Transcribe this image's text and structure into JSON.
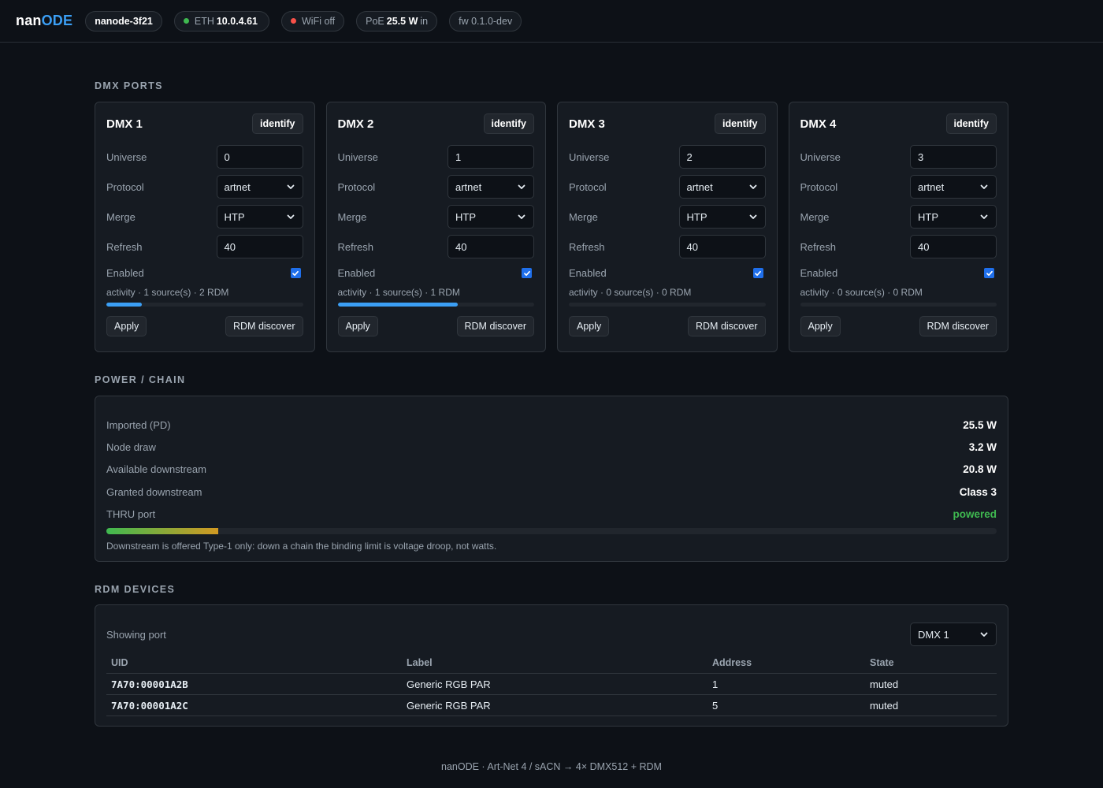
{
  "header": {
    "logo_prefix": "nan",
    "logo_accent": "ODE",
    "hostname": "nanode-3f21",
    "eth": {
      "label": "ETH",
      "value": "10.0.4.61",
      "color": "#3fb950"
    },
    "wifi": {
      "label": "WiFi off",
      "color": "#f85149"
    },
    "poe": {
      "label": "PoE",
      "value": "25.5 W",
      "suffix": "in"
    },
    "firmware": "fw 0.1.0-dev"
  },
  "ports_section": {
    "title": "DMX PORTS",
    "labels": {
      "universe": "Universe",
      "protocol": "Protocol",
      "merge": "Merge",
      "refresh": "Refresh",
      "enabled": "Enabled",
      "identify": "identify",
      "apply": "Apply",
      "rdm_discover": "RDM discover"
    },
    "ports": [
      {
        "title": "DMX 1",
        "universe": "0",
        "protocol": "artnet",
        "merge": "HTP",
        "refresh": "40",
        "enabled": true,
        "activity": "activity · 1 source(s) · 2 RDM",
        "activity_level": 0.18
      },
      {
        "title": "DMX 2",
        "universe": "1",
        "protocol": "artnet",
        "merge": "HTP",
        "refresh": "40",
        "enabled": true,
        "activity": "activity · 1 source(s) · 1 RDM",
        "activity_level": 0.61
      },
      {
        "title": "DMX 3",
        "universe": "2",
        "protocol": "artnet",
        "merge": "HTP",
        "refresh": "40",
        "enabled": true,
        "activity": "activity · 0 source(s) · 0 RDM",
        "activity_level": 0
      },
      {
        "title": "DMX 4",
        "universe": "3",
        "protocol": "artnet",
        "merge": "HTP",
        "refresh": "40",
        "enabled": true,
        "activity": "activity · 0 source(s) · 0 RDM",
        "activity_level": 0
      }
    ]
  },
  "power": {
    "title": "POWER / CHAIN",
    "rows": [
      {
        "label": "Imported (PD)",
        "value": "25.5 W"
      },
      {
        "label": "Node draw",
        "value": "3.2 W"
      },
      {
        "label": "Available downstream",
        "value": "20.8 W"
      },
      {
        "label": "Granted downstream",
        "value": "Class 3"
      },
      {
        "label": "THRU port",
        "value": "powered",
        "color": "#3fb950"
      }
    ],
    "usage_level": 0.126,
    "note": "Downstream is offered Type-1 only: down a chain the binding limit is voltage droop, not watts."
  },
  "rdm": {
    "title": "RDM DEVICES",
    "showing_label": "Showing port",
    "selected_port": "DMX 1",
    "columns": [
      "UID",
      "Label",
      "Address",
      "State"
    ],
    "devices": [
      {
        "uid": "7A70:00001A2B",
        "label": "Generic RGB PAR",
        "address": "1",
        "state": "muted"
      },
      {
        "uid": "7A70:00001A2C",
        "label": "Generic RGB PAR",
        "address": "5",
        "state": "muted"
      }
    ]
  },
  "footer": "nanODE · Art-Net 4 / sACN → 4× DMX512 + RDM"
}
